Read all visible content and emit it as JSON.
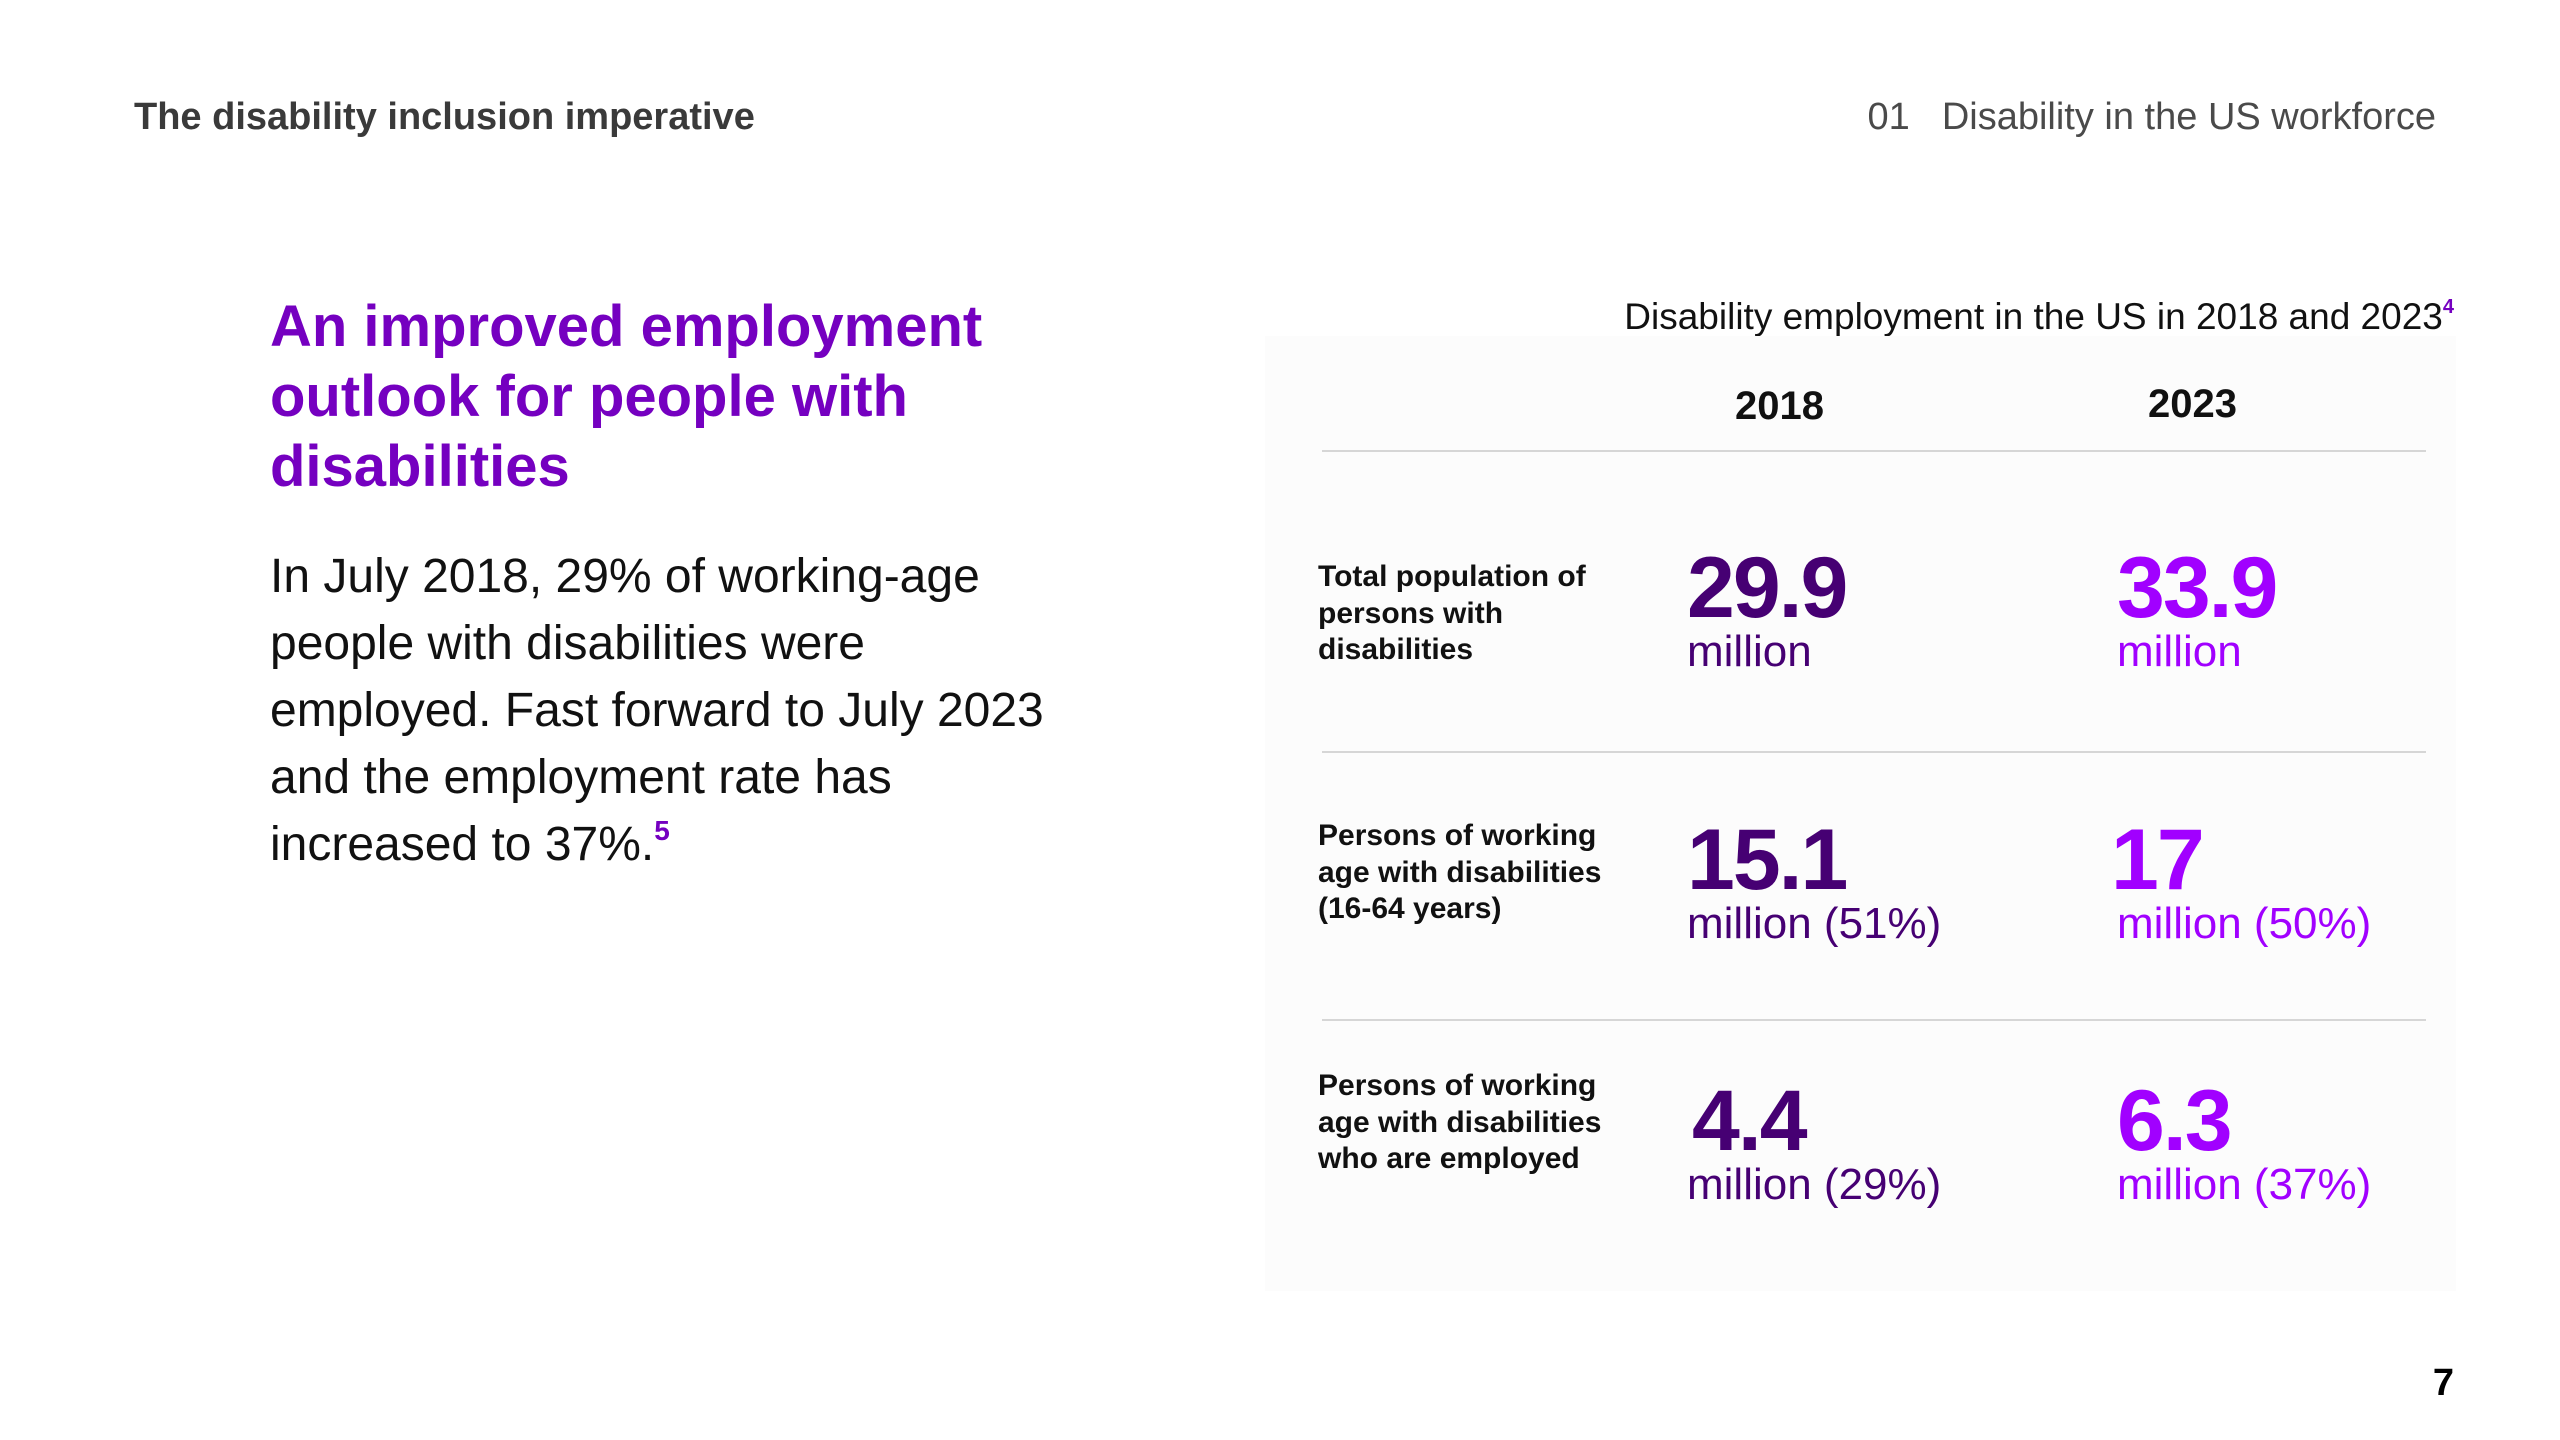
{
  "header": {
    "left_title": "The disability inclusion imperative",
    "section_number": "01",
    "section_title": "Disability in the US workforce"
  },
  "main": {
    "headline": "An improved employment outlook for people with disabilities",
    "body": "In July 2018, 29% of working-age people with disabilities were employed. Fast forward to July 2023 and the employment rate has increased to 37%.",
    "body_footnote": "5"
  },
  "table": {
    "title": "Disability employment in the US in 2018 and 2023",
    "title_footnote": "4",
    "columns": [
      "2018",
      "2023"
    ],
    "rows": [
      {
        "label": "Total population of persons with disabilities",
        "values": [
          {
            "number": "29.9",
            "unit": "million"
          },
          {
            "number": "33.9",
            "unit": "million"
          }
        ]
      },
      {
        "label": "Persons of working age with disabilities (16-64 years)",
        "values": [
          {
            "number": "15.1",
            "unit": "million (51%)"
          },
          {
            "number": "17",
            "unit": "million (50%)"
          }
        ]
      },
      {
        "label": "Persons of working age with disabilities who are employed",
        "values": [
          {
            "number": "4.4",
            "unit": "million (29%)"
          },
          {
            "number": "6.3",
            "unit": "million (37%)"
          }
        ]
      }
    ]
  },
  "colors": {
    "brand_purple": "#7500c0",
    "dark_purple": "#460073",
    "bright_purple": "#a100ff"
  },
  "page_number": "7"
}
